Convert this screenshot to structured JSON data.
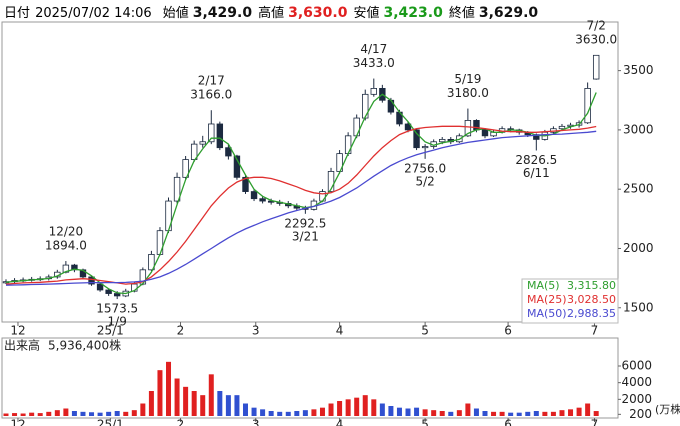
{
  "chart_data": {
    "type": "candlestick",
    "header": {
      "date_label": "日付",
      "date": "2025/07/02 14:06",
      "items": [
        {
          "label": "始値",
          "value_label": "3,429.0",
          "color": "#111111"
        },
        {
          "label": "高値",
          "value_label": "3,630.0",
          "color": "#e02020"
        },
        {
          "label": "安値",
          "value_label": "3,423.0",
          "color": "#1a9a1a"
        },
        {
          "label": "終値",
          "value_label": "3,629.0",
          "color": "#111111"
        }
      ]
    },
    "up_color": "#ffffff",
    "down_color": "#1c2a40",
    "outline_color": "#1c2a40",
    "open": [
      1710,
      1720,
      1730,
      1735,
      1740,
      1745,
      1760,
      1800,
      1860,
      1820,
      1760,
      1700,
      1650,
      1620,
      1600,
      1640,
      1700,
      1820,
      1950,
      2150,
      2400,
      2600,
      2750,
      2880,
      2900,
      3050,
      2850,
      2780,
      2600,
      2480,
      2420,
      2400,
      2390,
      2380,
      2360,
      2340,
      2330,
      2400,
      2480,
      2650,
      2800,
      2950,
      3100,
      3300,
      3350,
      3250,
      3150,
      3050,
      3000,
      2850,
      2860,
      2900,
      2920,
      2900,
      2950,
      3080,
      3000,
      2950,
      2980,
      3010,
      3000,
      2980,
      2960,
      2920,
      2980,
      3010,
      3030,
      3040,
      3060,
      3429
    ],
    "high": [
      1740,
      1750,
      1755,
      1760,
      1765,
      1780,
      1820,
      1894,
      1870,
      1830,
      1770,
      1710,
      1660,
      1640,
      1660,
      1720,
      1840,
      1980,
      2180,
      2430,
      2640,
      2780,
      2910,
      2950,
      3166,
      3070,
      2880,
      2790,
      2620,
      2500,
      2440,
      2420,
      2410,
      2400,
      2380,
      2360,
      2420,
      2500,
      2680,
      2830,
      2980,
      3130,
      3340,
      3433,
      3380,
      3270,
      3170,
      3070,
      3010,
      2880,
      2920,
      2940,
      2940,
      2970,
      3180,
      3090,
      3010,
      3000,
      3030,
      3030,
      3010,
      2990,
      2970,
      3000,
      3030,
      3050,
      3060,
      3080,
      3400,
      3630
    ],
    "low": [
      1700,
      1705,
      1715,
      1720,
      1725,
      1730,
      1745,
      1790,
      1800,
      1745,
      1685,
      1635,
      1600,
      1573.5,
      1590,
      1630,
      1690,
      1810,
      1940,
      2130,
      2380,
      2580,
      2730,
      2850,
      2880,
      2830,
      2750,
      2580,
      2460,
      2400,
      2380,
      2370,
      2360,
      2340,
      2320,
      2292.5,
      2320,
      2390,
      2470,
      2630,
      2780,
      2930,
      3080,
      3280,
      3230,
      3130,
      3030,
      2980,
      2830,
      2756,
      2840,
      2880,
      2880,
      2890,
      2940,
      2980,
      2930,
      2940,
      2970,
      2980,
      2960,
      2940,
      2826.5,
      2910,
      2970,
      2990,
      3010,
      3020,
      3050,
      3423
    ],
    "close": [
      1720,
      1730,
      1735,
      1740,
      1745,
      1760,
      1800,
      1860,
      1820,
      1760,
      1700,
      1650,
      1620,
      1600,
      1640,
      1700,
      1820,
      1950,
      2150,
      2400,
      2600,
      2750,
      2880,
      2900,
      3050,
      2850,
      2780,
      2600,
      2480,
      2420,
      2400,
      2390,
      2380,
      2360,
      2340,
      2330,
      2400,
      2480,
      2650,
      2800,
      2950,
      3100,
      3300,
      3350,
      3250,
      3150,
      3050,
      3000,
      2850,
      2860,
      2900,
      2920,
      2900,
      2950,
      3080,
      3000,
      2950,
      2980,
      3010,
      3000,
      2980,
      2960,
      2920,
      2980,
      3010,
      3030,
      3040,
      3060,
      3350,
      3629
    ],
    "series": [
      {
        "name": "MA(5)",
        "color": "#2e9e2e",
        "last_label": "3,315.80",
        "values": [
          1715,
          1722,
          1728,
          1735,
          1740,
          1748,
          1768,
          1805,
          1825,
          1815,
          1770,
          1710,
          1660,
          1625,
          1620,
          1645,
          1705,
          1800,
          1950,
          2150,
          2370,
          2580,
          2740,
          2840,
          2930,
          2930,
          2880,
          2750,
          2620,
          2500,
          2440,
          2405,
          2390,
          2375,
          2360,
          2345,
          2355,
          2400,
          2500,
          2640,
          2800,
          2950,
          3110,
          3240,
          3300,
          3250,
          3150,
          3070,
          2970,
          2900,
          2870,
          2890,
          2905,
          2920,
          2970,
          3000,
          3010,
          2980,
          2980,
          3000,
          2995,
          2980,
          2955,
          2950,
          2965,
          3000,
          3025,
          3045,
          3140,
          3315.8
        ]
      },
      {
        "name": "MA(25)",
        "color": "#e03030",
        "last_label": "3,028.50",
        "values": [
          1700,
          1705,
          1710,
          1712,
          1715,
          1720,
          1725,
          1735,
          1740,
          1745,
          1740,
          1730,
          1720,
          1710,
          1700,
          1705,
          1720,
          1760,
          1820,
          1890,
          1970,
          2060,
          2160,
          2260,
          2360,
          2440,
          2510,
          2560,
          2590,
          2600,
          2600,
          2590,
          2570,
          2545,
          2520,
          2490,
          2470,
          2460,
          2470,
          2500,
          2550,
          2620,
          2700,
          2780,
          2850,
          2910,
          2960,
          2990,
          3010,
          3020,
          3025,
          3030,
          3030,
          3030,
          3025,
          3020,
          3010,
          3000,
          2990,
          2985,
          2985,
          2980,
          2980,
          2985,
          2990,
          2995,
          3000,
          3005,
          3015,
          3028.5
        ]
      },
      {
        "name": "MA(50)",
        "color": "#4a4ad0",
        "last_label": "2,988.35",
        "values": [
          1690,
          1692,
          1694,
          1696,
          1698,
          1700,
          1702,
          1705,
          1708,
          1710,
          1712,
          1712,
          1712,
          1712,
          1714,
          1718,
          1725,
          1740,
          1760,
          1790,
          1825,
          1865,
          1910,
          1955,
          2000,
          2045,
          2090,
          2130,
          2165,
          2195,
          2225,
          2250,
          2275,
          2300,
          2320,
          2340,
          2355,
          2375,
          2400,
          2430,
          2470,
          2510,
          2560,
          2610,
          2655,
          2700,
          2735,
          2765,
          2790,
          2810,
          2830,
          2850,
          2865,
          2880,
          2895,
          2905,
          2915,
          2925,
          2935,
          2940,
          2945,
          2950,
          2955,
          2960,
          2962,
          2965,
          2970,
          2975,
          2980,
          2988.35
        ]
      }
    ],
    "annotations": [
      {
        "date": "12/20",
        "value": 1894,
        "value_label": "1894.0"
      },
      {
        "date": "1/9",
        "value": 1573.5,
        "value_label": "1573.5"
      },
      {
        "date": "2/17",
        "value": 3166,
        "value_label": "3166.0"
      },
      {
        "date": "3/21",
        "value": 2292.5,
        "value_label": "2292.5"
      },
      {
        "date": "4/17",
        "value": 3433,
        "value_label": "3433.0"
      },
      {
        "date": "5/2",
        "value": 2756,
        "value_label": "2756.0"
      },
      {
        "date": "5/19",
        "value": 3180,
        "value_label": "3180.0"
      },
      {
        "date": "6/11",
        "value": 2826.5,
        "value_label": "2826.5"
      },
      {
        "date": "7/2",
        "value": 3630,
        "value_label": "3630.0"
      }
    ],
    "xlim": [
      -0.35,
      71.55
    ],
    "xticks": [
      {
        "value": 1.4,
        "label": "12"
      },
      {
        "value": 12.2,
        "label": "25/1"
      },
      {
        "value": 20.4,
        "label": "2"
      },
      {
        "value": 29.2,
        "label": "3"
      },
      {
        "value": 39,
        "label": "4"
      },
      {
        "value": 49,
        "label": "5"
      },
      {
        "value": 58.7,
        "label": "6"
      },
      {
        "value": 68.8,
        "label": "7"
      }
    ],
    "ylim": [
      1380,
      3910
    ],
    "yticks": [
      1500,
      2000,
      2500,
      3000,
      3500
    ],
    "grid": false,
    "volume": {
      "title": "出来高",
      "total_label": "5,936,400株",
      "unit": "(万株)",
      "up_color": "#e02020",
      "down_color": "#3050d0",
      "values": [
        300,
        350,
        300,
        400,
        350,
        500,
        700,
        900,
        600,
        500,
        450,
        400,
        500,
        600,
        500,
        700,
        1500,
        3000,
        5500,
        6500,
        4500,
        3500,
        3000,
        2500,
        5000,
        3000,
        2500,
        2500,
        1500,
        1000,
        800,
        600,
        500,
        500,
        600,
        700,
        800,
        1000,
        1500,
        1800,
        2000,
        2200,
        2500,
        2000,
        1500,
        1200,
        1000,
        900,
        1000,
        800,
        700,
        600,
        500,
        700,
        1500,
        900,
        600,
        500,
        500,
        400,
        400,
        500,
        600,
        500,
        500,
        700,
        800,
        1000,
        1500,
        593.64
      ],
      "ylim": [
        0,
        8400
      ],
      "yticks": [
        200,
        2000,
        4000,
        6000
      ]
    }
  }
}
